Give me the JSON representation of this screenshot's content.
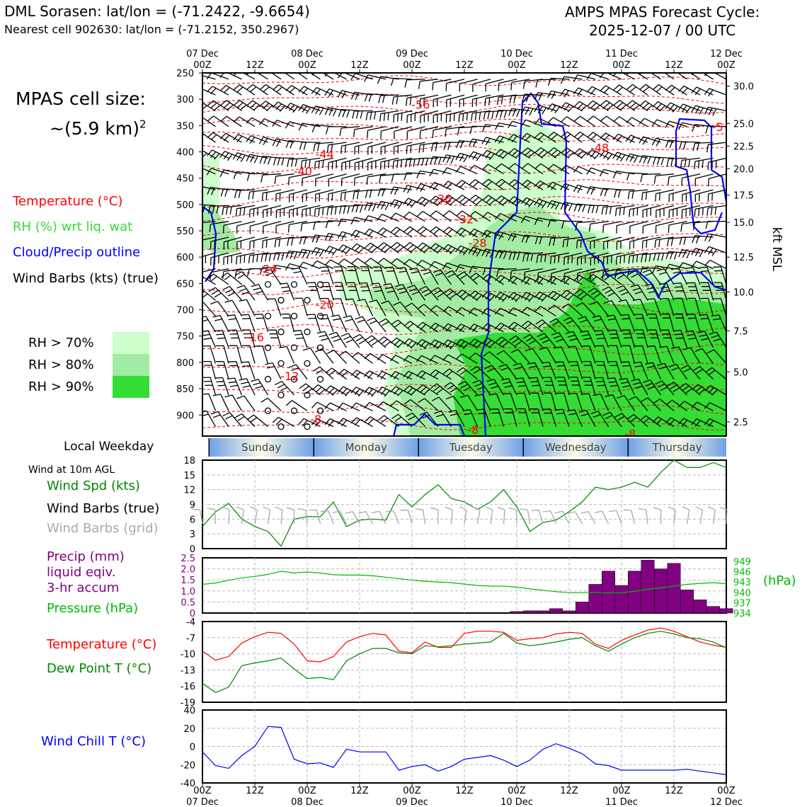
{
  "header": {
    "title_left": "DML Sorasen: lat/lon = (-71.2422, -9.6654)",
    "subtitle_left": "Nearest cell 902630: lat/lon = (-71.2152, 350.2967)",
    "title_right_line1": "AMPS MPAS Forecast Cycle:",
    "title_right_line2": "2025-12-07 / 00 UTC"
  },
  "left_panel": {
    "cell_size_line1": "MPAS cell size:",
    "cell_size_line2": "~(5.9 km)",
    "cell_size_sup": "2",
    "legend_temperature": "Temperature (°C)",
    "legend_rh": "RH (%) wrt liq. wat",
    "legend_cloud": "Cloud/Precip outline",
    "legend_wind": "Wind Barbs (kts) (true)",
    "rh_bins": [
      {
        "label": "RH > 70%",
        "color": "#ccffcc"
      },
      {
        "label": "RH > 80%",
        "color": "#a2eba2"
      },
      {
        "label": "RH > 90%",
        "color": "#33dd33"
      }
    ],
    "local_weekday": "Local Weekday",
    "wind_at": "Wind at 10m AGL",
    "wind_spd": "Wind Spd (kts)",
    "wind_barbs_true": "Wind Barbs (true)",
    "wind_barbs_grid": "Wind Barbs (grid)",
    "precip_line1": "Precip (mm)",
    "precip_line2": "liquid eqiv.",
    "precip_line3": "3-hr accum",
    "pressure": "Pressure (hPa)",
    "temperature": "Temperature (°C)",
    "dewpoint": "Dew Point T (°C)",
    "windchill": "Wind Chill T (°C)"
  },
  "colors": {
    "temperature": "#ff0000",
    "rh_text": "#33dd33",
    "cloud": "#0000ff",
    "windspd": "#008800",
    "grid_barbs": "#aaaaaa",
    "precip": "#800080",
    "pressure": "#00bb00",
    "dewpoint": "#008800",
    "windchill": "#0000ff"
  },
  "chart_data": [
    {
      "type": "heatmap",
      "name": "time-height cross section",
      "top_ticks": [
        {
          "date": "07 Dec",
          "hour": "00Z"
        },
        {
          "date": "",
          "hour": "12Z"
        },
        {
          "date": "08 Dec",
          "hour": "00Z"
        },
        {
          "date": "",
          "hour": "12Z"
        },
        {
          "date": "09 Dec",
          "hour": "00Z"
        },
        {
          "date": "",
          "hour": "12Z"
        },
        {
          "date": "10 Dec",
          "hour": "00Z"
        },
        {
          "date": "",
          "hour": "12Z"
        },
        {
          "date": "11 Dec",
          "hour": "00Z"
        },
        {
          "date": "",
          "hour": "12Z"
        },
        {
          "date": "12 Dec",
          "hour": "00Z"
        }
      ],
      "pressure_ticks": [
        "250",
        "300",
        "350",
        "400",
        "450",
        "500",
        "550",
        "600",
        "650",
        "700",
        "750",
        "800",
        "850",
        "900"
      ],
      "pressure_range": [
        250,
        940
      ],
      "kft_ticks": [
        {
          "label": "30.0",
          "p": 275
        },
        {
          "label": "25.0",
          "p": 346
        },
        {
          "label": "22.5",
          "p": 389
        },
        {
          "label": "20.0",
          "p": 432
        },
        {
          "label": "17.5",
          "p": 482
        },
        {
          "label": "15.0",
          "p": 534
        },
        {
          "label": "12.5",
          "p": 600
        },
        {
          "label": "10.0",
          "p": 666
        },
        {
          "label": "7.5",
          "p": 740
        },
        {
          "label": "5.0",
          "p": 818
        },
        {
          "label": "2.5",
          "p": 913
        }
      ],
      "right_axis_label": "kft MSL",
      "temperature_contour_labels": [
        {
          "label": "-56",
          "h": 50,
          "p": 310
        },
        {
          "label": "-44",
          "h": 28,
          "p": 404
        },
        {
          "label": "-48",
          "h": 91,
          "p": 392
        },
        {
          "label": "-40",
          "h": 23,
          "p": 436
        },
        {
          "label": "-36",
          "h": 55,
          "p": 489
        },
        {
          "label": "-32",
          "h": 60,
          "p": 528
        },
        {
          "label": "-28",
          "h": 63,
          "p": 573
        },
        {
          "label": "-24",
          "h": 15,
          "p": 622
        },
        {
          "label": "-20",
          "h": 28,
          "p": 690
        },
        {
          "label": "-16",
          "h": 12,
          "p": 752
        },
        {
          "label": "-12",
          "h": 20,
          "p": 826
        },
        {
          "label": "-8",
          "h": 26,
          "p": 908
        },
        {
          "label": "-8",
          "h": 62,
          "p": 928
        },
        {
          "label": "-8",
          "h": 98,
          "p": 935
        },
        {
          "label": "-5",
          "h": 118,
          "p": 352
        }
      ]
    },
    {
      "type": "table",
      "name": "local weekday bar",
      "days": [
        "Sunday",
        "Monday",
        "Tuesday",
        "Wednesday",
        "Thursday"
      ]
    },
    {
      "type": "line",
      "name": "10m wind speed",
      "x_hours": [
        0,
        3,
        6,
        9,
        12,
        15,
        18,
        21,
        24,
        27,
        30,
        33,
        36,
        39,
        42,
        45,
        48,
        51,
        54,
        57,
        60,
        63,
        66,
        69,
        72,
        75,
        78,
        81,
        84,
        87,
        90,
        93,
        96,
        99,
        102,
        105,
        108,
        111,
        114,
        117,
        120
      ],
      "values": [
        4.5,
        7.5,
        9.2,
        6,
        4.5,
        3.5,
        0.5,
        6,
        6.5,
        6.5,
        9.5,
        4.5,
        5.8,
        6,
        5.8,
        11,
        8.5,
        11,
        13,
        10.2,
        9.5,
        8,
        9.5,
        12,
        8.5,
        3.5,
        5.3,
        5.8,
        7.5,
        9.5,
        12.5,
        12,
        12.5,
        13.5,
        12.5,
        15.5,
        18,
        16.5,
        16.5,
        17.5,
        16.5
      ],
      "ylim": [
        0,
        18
      ],
      "yticks": [
        0,
        3,
        6,
        9,
        12,
        15,
        18
      ]
    },
    {
      "type": "bar",
      "name": "3-hr precip",
      "x_hours": [
        90,
        93,
        96,
        99,
        102,
        105,
        108,
        111,
        114,
        117,
        120
      ],
      "precip_values": [
        0.07,
        0.1,
        0.1,
        0.2,
        0.1,
        0.5,
        1.3,
        1.9,
        1.25,
        1.9,
        2.4,
        2.0,
        2.25,
        1.05,
        0.6,
        0.3,
        0.2
      ],
      "precip_start_hour": 69,
      "ylim": [
        0,
        2.5
      ],
      "yticks": [
        "0",
        "0.5",
        "1.0",
        "1.5",
        "2.0",
        "2.5"
      ],
      "pressure_values": [
        942.3,
        942.7,
        943.5,
        944.2,
        944.6,
        945.2,
        946.1,
        945.6,
        945.9,
        945.6,
        945.1,
        945.0,
        945.0,
        944.8,
        944.4,
        944.0,
        943.5,
        943.2,
        943.0,
        942.8,
        942.4,
        942.0,
        941.8,
        941.8,
        941.5,
        941.0,
        940.6,
        940.2,
        939.9,
        939.9,
        940.0,
        939.8,
        939.9,
        940.3,
        940.9,
        941.3,
        941.8,
        942.3,
        942.6,
        942.8,
        942.5
      ],
      "pressure_ylim": [
        934,
        950
      ],
      "pressure_ticks": [
        "949",
        "946",
        "943",
        "940",
        "937",
        "934"
      ]
    },
    {
      "type": "line",
      "name": "temperature and dew point",
      "temperature": [
        -9.5,
        -11.2,
        -10.5,
        -8.0,
        -6.8,
        -6.0,
        -6.2,
        -8.2,
        -11.3,
        -11.5,
        -10.5,
        -7.8,
        -6.8,
        -6.2,
        -6.5,
        -9.5,
        -9.8,
        -7.8,
        -8.8,
        -8.8,
        -6.2,
        -5.8,
        -5.8,
        -6.0,
        -7.5,
        -7.2,
        -7.0,
        -6.3,
        -6.0,
        -6.2,
        -8.2,
        -9.0,
        -7.5,
        -6.5,
        -5.6,
        -5.2,
        -5.8,
        -6.8,
        -7.8,
        -8.4,
        -8.8
      ],
      "dewpoint": [
        -15.5,
        -17.2,
        -16.2,
        -12.2,
        -11.7,
        -11.3,
        -10.8,
        -12.8,
        -14.6,
        -14.4,
        -14.8,
        -11.3,
        -10.0,
        -9.0,
        -9.0,
        -9.8,
        -10.0,
        -8.5,
        -8.7,
        -8.5,
        -8.2,
        -8.0,
        -7.8,
        -6.2,
        -8.0,
        -8.5,
        -8.2,
        -7.8,
        -7.3,
        -7.0,
        -8.5,
        -9.5,
        -8.2,
        -7.0,
        -6.2,
        -5.8,
        -6.3,
        -7.0,
        -7.2,
        -7.8,
        -8.9
      ],
      "ylim": [
        -19,
        -4
      ],
      "yticks": [
        "-4",
        "-7",
        "-10",
        "-13",
        "-16",
        "-19"
      ]
    },
    {
      "type": "line",
      "name": "wind chill",
      "values": [
        -6,
        -21,
        -24,
        -10,
        0,
        22,
        21,
        -14,
        -19,
        -18,
        -23,
        -3,
        -6,
        -6,
        -6,
        -26,
        -22,
        -20,
        -27,
        -22,
        -14,
        -12,
        -10,
        -15,
        -22,
        -15,
        -3,
        3,
        -2,
        -8,
        -19,
        -21,
        -26,
        -26,
        -26,
        -26,
        -26,
        -25,
        -27,
        -29,
        -31
      ],
      "ylim": [
        -40,
        40
      ],
      "yticks": [
        "40",
        "20",
        "0",
        "-20",
        "-40"
      ]
    }
  ]
}
